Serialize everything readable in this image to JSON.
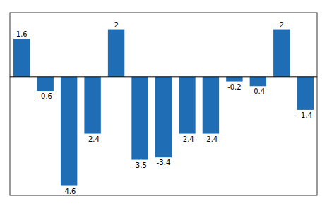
{
  "chart_data": {
    "type": "bar",
    "categories": [
      null,
      null,
      null,
      null,
      null,
      null,
      null,
      null,
      null,
      null,
      null,
      null,
      null
    ],
    "values": [
      1.6,
      -0.6,
      -4.6,
      -2.4,
      2.0,
      -3.5,
      -3.4,
      -2.4,
      -2.4,
      -0.2,
      -0.4,
      2.0,
      -1.4
    ],
    "color": "#1f6eb5",
    "ylim": [
      -5.0,
      2.7
    ],
    "data_labels": true,
    "tick_labels": false,
    "grid": false
  }
}
